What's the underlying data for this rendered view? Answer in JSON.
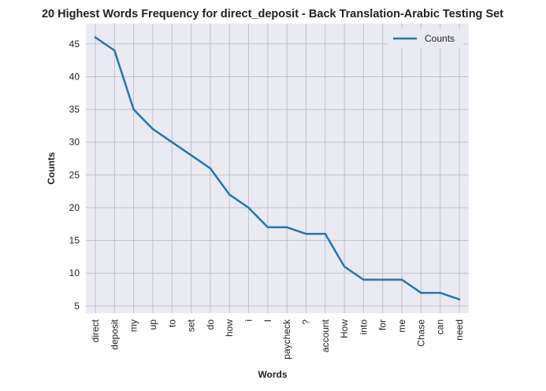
{
  "colors": {
    "plot_background": "#eaeaf2",
    "grid": "#c0c0c8",
    "series_line": "#1f77b4",
    "legend_background": "#eaeaf2"
  },
  "chart_data": {
    "type": "line",
    "title": "20 Highest Words Frequency for direct_deposit - Back Translation-Arabic Testing Set",
    "xlabel": "Words",
    "ylabel": "Counts",
    "categories": [
      "direct",
      "deposit",
      "my",
      "up",
      "to",
      "set",
      "do",
      "how",
      "i",
      "I",
      "paycheck",
      "?",
      "account",
      "How",
      "into",
      "for",
      "me",
      "Chase",
      "can",
      "need"
    ],
    "series": [
      {
        "name": "Counts",
        "values": [
          46,
          44,
          35,
          32,
          30,
          28,
          26,
          22,
          20,
          17,
          17,
          16,
          16,
          11,
          9,
          9,
          9,
          7,
          7,
          6
        ]
      }
    ],
    "yticks": [
      5,
      10,
      15,
      20,
      25,
      30,
      35,
      40,
      45
    ],
    "ylim": [
      3.9,
      48.1
    ],
    "grid": true,
    "legend_position": "upper right"
  }
}
